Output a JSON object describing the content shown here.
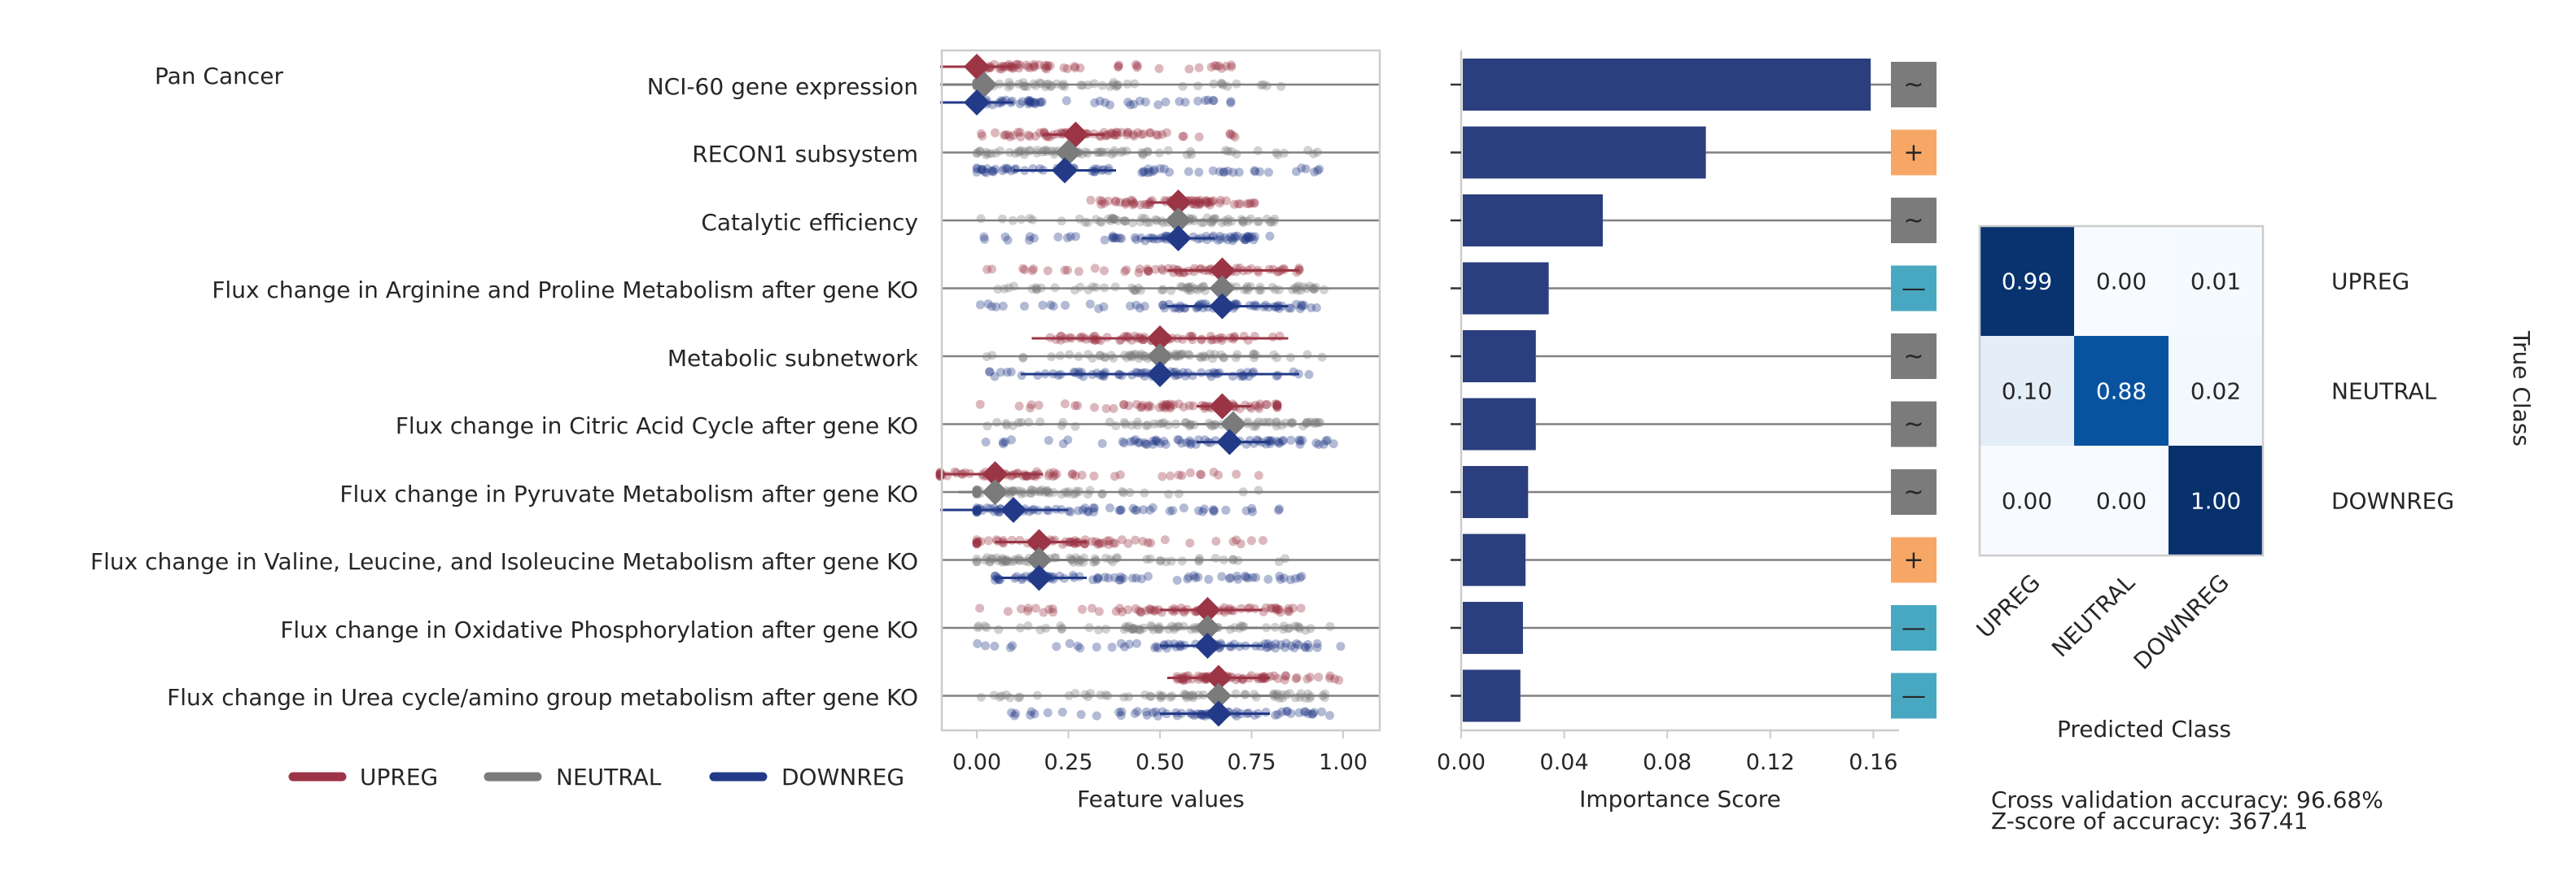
{
  "figure_title": "Pan Cancer",
  "colors": {
    "upreg": "#9b3546",
    "neutral": "#7b7b7b",
    "downreg": "#223a88",
    "bar": "#2b3f7e",
    "sign_plus": "#f7a765",
    "sign_minus": "#49a8c1",
    "sign_tilde": "#7b7b7b"
  },
  "chart_data": [
    {
      "type": "scatter",
      "name": "feature-values",
      "xlabel": "Feature values",
      "xlim": [
        -0.1,
        1.1
      ],
      "xticks": [
        "0.00",
        "0.25",
        "0.50",
        "0.75",
        "1.00"
      ],
      "xtick_values": [
        0,
        0.25,
        0.5,
        0.75,
        1.0
      ],
      "categories": [
        "NCI-60 gene expression",
        "RECON1 subsystem",
        "Catalytic efficiency",
        "Flux change in Arginine and Proline Metabolism after gene KO",
        "Metabolic subnetwork",
        "Flux change in Citric Acid Cycle after gene KO",
        "Flux change in Pyruvate Metabolism after gene KO",
        "Flux change in Valine, Leucine, and Isoleucine Metabolism after gene KO",
        "Flux change in Oxidative Phosphorylation after gene KO",
        "Flux change in Urea cycle/amino group metabolism after gene KO"
      ],
      "series": [
        {
          "name": "UPREG",
          "ranges": [
            [
              0.0,
              0.72
            ],
            [
              0.0,
              0.75
            ],
            [
              0.3,
              0.78
            ],
            [
              0.0,
              0.88
            ],
            [
              0.15,
              0.85
            ],
            [
              0.0,
              0.82
            ],
            [
              -0.1,
              0.8
            ],
            [
              0.0,
              0.85
            ],
            [
              0.0,
              0.92
            ],
            [
              0.52,
              1.0
            ]
          ],
          "means": [
            0.0,
            0.27,
            0.55,
            0.67,
            0.5,
            0.67,
            0.05,
            0.17,
            0.63,
            0.66
          ],
          "ci": [
            [
              -0.1,
              0.1
            ],
            [
              0.18,
              0.35
            ],
            [
              0.47,
              0.62
            ],
            [
              0.52,
              0.88
            ],
            [
              0.15,
              0.85
            ],
            [
              0.6,
              0.75
            ],
            [
              -0.1,
              0.18
            ],
            [
              0.05,
              0.3
            ],
            [
              0.5,
              0.78
            ],
            [
              0.52,
              0.8
            ]
          ]
        },
        {
          "name": "NEUTRAL",
          "ranges": [
            [
              0.0,
              0.85
            ],
            [
              0.0,
              0.95
            ],
            [
              0.0,
              0.82
            ],
            [
              0.0,
              0.95
            ],
            [
              0.0,
              0.95
            ],
            [
              0.0,
              0.95
            ],
            [
              0.0,
              0.82
            ],
            [
              0.0,
              0.88
            ],
            [
              0.0,
              0.98
            ],
            [
              0.0,
              1.0
            ]
          ],
          "means": [
            0.02,
            0.25,
            0.55,
            0.67,
            0.5,
            0.7,
            0.05,
            0.17,
            0.63,
            0.66
          ],
          "ci": [
            [
              -0.1,
              0.15
            ],
            [
              0.15,
              0.35
            ],
            [
              0.45,
              0.65
            ],
            [
              0.5,
              0.8
            ],
            [
              0.2,
              0.8
            ],
            [
              0.6,
              0.8
            ],
            [
              -0.05,
              0.2
            ],
            [
              0.05,
              0.3
            ],
            [
              0.5,
              0.78
            ],
            [
              0.5,
              0.8
            ]
          ]
        },
        {
          "name": "DOWNREG",
          "ranges": [
            [
              0.0,
              0.72
            ],
            [
              0.0,
              0.98
            ],
            [
              0.0,
              0.82
            ],
            [
              0.0,
              0.95
            ],
            [
              0.0,
              0.95
            ],
            [
              0.0,
              0.98
            ],
            [
              0.0,
              0.85
            ],
            [
              0.05,
              0.9
            ],
            [
              0.0,
              1.0
            ],
            [
              0.0,
              1.0
            ]
          ],
          "means": [
            0.0,
            0.24,
            0.55,
            0.67,
            0.5,
            0.69,
            0.1,
            0.17,
            0.63,
            0.66
          ],
          "ci": [
            [
              -0.1,
              0.1
            ],
            [
              0.1,
              0.38
            ],
            [
              0.45,
              0.65
            ],
            [
              0.52,
              0.85
            ],
            [
              0.12,
              0.88
            ],
            [
              0.6,
              0.8
            ],
            [
              -0.1,
              0.25
            ],
            [
              0.05,
              0.3
            ],
            [
              0.5,
              0.78
            ],
            [
              0.5,
              0.8
            ]
          ]
        }
      ]
    },
    {
      "type": "bar",
      "name": "importance",
      "orientation": "horizontal",
      "xlabel": "Importance Score",
      "xlim": [
        0,
        0.17
      ],
      "xticks": [
        "0.00",
        "0.04",
        "0.08",
        "0.12",
        "0.16"
      ],
      "xtick_values": [
        0,
        0.04,
        0.08,
        0.12,
        0.16
      ],
      "values": [
        0.159,
        0.095,
        0.055,
        0.034,
        0.029,
        0.029,
        0.026,
        0.025,
        0.024,
        0.023
      ],
      "signs": [
        "~",
        "+",
        "~",
        "—",
        "~",
        "~",
        "~",
        "+",
        "—",
        "—"
      ]
    },
    {
      "type": "heatmap",
      "name": "confusion-matrix",
      "row_labels": [
        "UPREG",
        "NEUTRAL",
        "DOWNREG"
      ],
      "col_labels": [
        "UPREG",
        "NEUTRAL",
        "DOWNREG"
      ],
      "cells": [
        [
          "0.99",
          "0.00",
          "0.01"
        ],
        [
          "0.10",
          "0.88",
          "0.02"
        ],
        [
          "0.00",
          "0.00",
          "1.00"
        ]
      ],
      "values": [
        [
          0.99,
          0.0,
          0.01
        ],
        [
          0.1,
          0.88,
          0.02
        ],
        [
          0.0,
          0.0,
          1.0
        ]
      ],
      "xlabel": "Predicted Class",
      "ylabel": "True Class"
    }
  ],
  "legend": [
    {
      "label": "UPREG",
      "color": "#9b3546"
    },
    {
      "label": "NEUTRAL",
      "color": "#7b7b7b"
    },
    {
      "label": "DOWNREG",
      "color": "#223a88"
    }
  ],
  "stats": {
    "accuracy": "Cross validation accuracy: 96.68%",
    "zscore": "Z-score of accuracy: 367.41"
  }
}
